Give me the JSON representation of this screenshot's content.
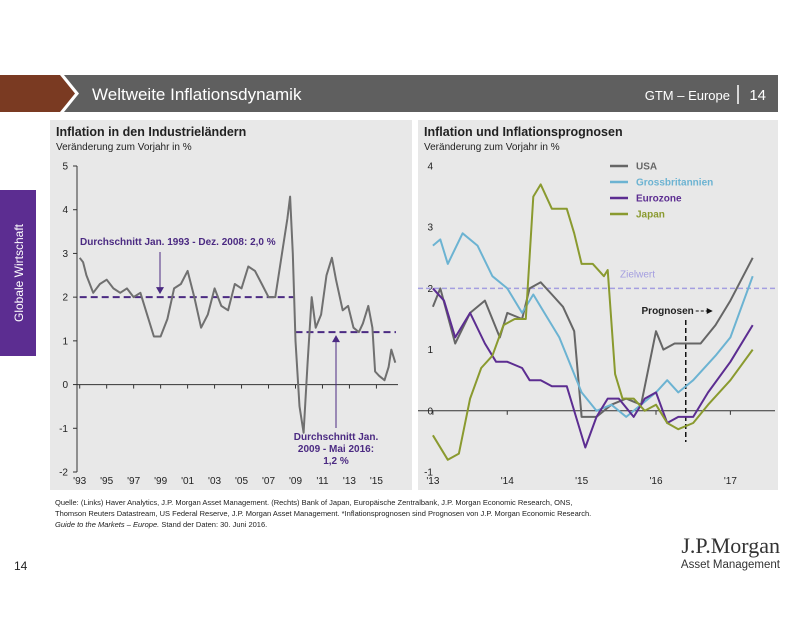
{
  "header": {
    "title": "Weltweite Inflationsdynamik",
    "section": "GTM – Europe",
    "page": "14"
  },
  "side_label": "Globale Wirtschaft",
  "chart_data": [
    {
      "type": "line",
      "title": "Inflation in den Industrieländern",
      "subtitle": "Veränderung zum Vorjahr in %",
      "xlim": [
        1992.8,
        2016.6
      ],
      "ylim": [
        -2,
        5
      ],
      "yticks": [
        -2,
        -1,
        0,
        1,
        2,
        3,
        4,
        5
      ],
      "xticks": [
        {
          "value": 1993,
          "label": "'93"
        },
        {
          "value": 1995,
          "label": "'95"
        },
        {
          "value": 1997,
          "label": "'97"
        },
        {
          "value": 1999,
          "label": "'99"
        },
        {
          "value": 2001,
          "label": "'01"
        },
        {
          "value": 2003,
          "label": "'03"
        },
        {
          "value": 2005,
          "label": "'05"
        },
        {
          "value": 2007,
          "label": "'07"
        },
        {
          "value": 2009,
          "label": "'09"
        },
        {
          "value": 2011,
          "label": "'11"
        },
        {
          "value": 2013,
          "label": "'13"
        },
        {
          "value": 2015,
          "label": "'15"
        }
      ],
      "series": [
        {
          "color": "#707070",
          "x": [
            1993,
            1993.25,
            1993.5,
            1993.75,
            1994,
            1994.5,
            1995,
            1995.5,
            1996,
            1996.5,
            1997,
            1997.5,
            1998,
            1998.5,
            1999,
            1999.5,
            2000,
            2000.5,
            2001,
            2001.5,
            2002,
            2002.5,
            2003,
            2003.5,
            2004,
            2004.5,
            2005,
            2005.5,
            2006,
            2006.5,
            2007,
            2007.5,
            2008,
            2008.4,
            2008.6,
            2008.8,
            2009,
            2009.3,
            2009.6,
            2009.9,
            2010.2,
            2010.5,
            2010.9,
            2011.3,
            2011.7,
            2012,
            2012.5,
            2012.9,
            2013.3,
            2013.7,
            2014,
            2014.4,
            2014.7,
            2014.9,
            2015.2,
            2015.6,
            2015.9,
            2016.1,
            2016.4
          ],
          "values": [
            2.9,
            2.8,
            2.5,
            2.3,
            2.1,
            2.3,
            2.4,
            2.2,
            2.1,
            2.2,
            2.0,
            2.1,
            1.6,
            1.1,
            1.1,
            1.5,
            2.2,
            2.3,
            2.6,
            2.0,
            1.3,
            1.6,
            2.2,
            1.8,
            1.7,
            2.3,
            2.2,
            2.7,
            2.6,
            2.3,
            2.0,
            2.0,
            3.0,
            3.8,
            4.3,
            3.0,
            1.0,
            -0.5,
            -1.1,
            0.5,
            2.0,
            1.3,
            1.6,
            2.5,
            2.9,
            2.4,
            1.7,
            1.8,
            1.3,
            1.2,
            1.4,
            1.8,
            1.3,
            0.3,
            0.2,
            0.1,
            0.4,
            0.8,
            0.5
          ]
        }
      ],
      "reference_lines": [
        {
          "value": 2.0,
          "x": [
            1993,
            2008.95
          ],
          "color": "#4b2a82",
          "label": "Durchschnitt Jan. 1993 - Dez. 2008: 2,0 %"
        },
        {
          "value": 1.2,
          "x": [
            2009,
            2016.45
          ],
          "color": "#4b2a82",
          "label_lines": [
            "Durchschnitt Jan.",
            "2009 - Mai 2016:",
            "1,2 %"
          ]
        }
      ]
    },
    {
      "type": "line",
      "title": "Inflation und Inflationsprognosen",
      "subtitle": "Veränderung zum Vorjahr in %",
      "xlim": [
        2012.8,
        2017.6
      ],
      "ylim": [
        -1,
        4
      ],
      "yticks": [
        -1,
        0,
        1,
        2,
        3,
        4
      ],
      "xticks": [
        {
          "value": 2013,
          "label": "'13"
        },
        {
          "value": 2014,
          "label": "'14"
        },
        {
          "value": 2015,
          "label": "'15"
        },
        {
          "value": 2016,
          "label": "'16"
        },
        {
          "value": 2017,
          "label": "'17"
        }
      ],
      "series": [
        {
          "name": "USA",
          "color": "#666666",
          "x": [
            2013.0,
            2013.1,
            2013.3,
            2013.5,
            2013.7,
            2013.9,
            2014.0,
            2014.2,
            2014.3,
            2014.45,
            2014.6,
            2014.75,
            2014.9,
            2015.0,
            2015.2,
            2015.4,
            2015.6,
            2015.8,
            2016.0,
            2016.1,
            2016.25,
            2016.4,
            2016.6,
            2016.8,
            2017.0,
            2017.3
          ],
          "values": [
            1.7,
            2.0,
            1.1,
            1.6,
            1.8,
            1.2,
            1.6,
            1.5,
            2.0,
            2.1,
            1.9,
            1.7,
            1.3,
            -0.1,
            -0.1,
            0.1,
            0.2,
            0.1,
            1.3,
            1.0,
            1.1,
            1.1,
            1.1,
            1.4,
            1.8,
            2.5
          ]
        },
        {
          "name": "Grossbritannien",
          "color": "#6cb3d2",
          "x": [
            2013.0,
            2013.1,
            2013.2,
            2013.4,
            2013.6,
            2013.8,
            2014.0,
            2014.2,
            2014.35,
            2014.5,
            2014.7,
            2014.9,
            2015.0,
            2015.2,
            2015.4,
            2015.6,
            2015.8,
            2016.0,
            2016.15,
            2016.3,
            2016.5,
            2016.8,
            2017.0,
            2017.3
          ],
          "values": [
            2.7,
            2.8,
            2.4,
            2.9,
            2.7,
            2.2,
            2.0,
            1.6,
            1.9,
            1.6,
            1.2,
            0.6,
            0.3,
            0.0,
            0.1,
            -0.1,
            0.1,
            0.3,
            0.5,
            0.3,
            0.5,
            0.9,
            1.2,
            2.2
          ]
        },
        {
          "name": "Eurozone",
          "color": "#5c2d91",
          "x": [
            2013.0,
            2013.15,
            2013.3,
            2013.5,
            2013.7,
            2013.85,
            2014.0,
            2014.2,
            2014.3,
            2014.45,
            2014.6,
            2014.8,
            2014.95,
            2015.05,
            2015.2,
            2015.35,
            2015.5,
            2015.7,
            2015.85,
            2016.0,
            2016.15,
            2016.3,
            2016.5,
            2016.7,
            2017.0,
            2017.3
          ],
          "values": [
            2.0,
            1.8,
            1.2,
            1.6,
            1.1,
            0.8,
            0.8,
            0.7,
            0.5,
            0.5,
            0.4,
            0.4,
            -0.2,
            -0.6,
            -0.1,
            0.2,
            0.2,
            -0.1,
            0.2,
            0.3,
            -0.2,
            -0.1,
            -0.1,
            0.3,
            0.8,
            1.4
          ]
        },
        {
          "name": "Japan",
          "color": "#8a9a2f",
          "x": [
            2013.0,
            2013.2,
            2013.35,
            2013.5,
            2013.65,
            2013.8,
            2013.95,
            2014.1,
            2014.25,
            2014.35,
            2014.45,
            2014.6,
            2014.8,
            2014.9,
            2015.0,
            2015.15,
            2015.3,
            2015.35,
            2015.45,
            2015.55,
            2015.7,
            2015.85,
            2016.0,
            2016.15,
            2016.3,
            2016.5,
            2016.7,
            2017.0,
            2017.3
          ],
          "values": [
            -0.4,
            -0.8,
            -0.7,
            0.2,
            0.7,
            0.9,
            1.4,
            1.5,
            1.5,
            3.5,
            3.7,
            3.3,
            3.3,
            2.9,
            2.4,
            2.4,
            2.2,
            2.3,
            0.6,
            0.2,
            0.2,
            0.0,
            0.1,
            -0.2,
            -0.3,
            -0.2,
            0.1,
            0.5,
            1.0
          ]
        }
      ],
      "reference_lines": [
        {
          "value": 2.0,
          "color": "#a49ee0",
          "label": "Zielwert"
        }
      ],
      "forecast": {
        "x": 2016.4,
        "label": "Prognosen"
      }
    }
  ],
  "footer": {
    "source": [
      "Quelle: (Links) Haver Analytics, J.P. Morgan Asset Management. (Rechts) Bank of Japan, Europäische Zentralbank, J.P. Morgan Economic Research, ONS,",
      "Thomson Reuters Datastream, US Federal Reserve, J.P. Morgan Asset Management. *Inflationsprognosen sind Prognosen von J.P. Morgan Economic Research."
    ],
    "guide": "Guide to the Markets – Europe.",
    "date": " Stand der Daten: 30. Juni 2016."
  },
  "page_number": "14",
  "logo": {
    "name": "J.P.Morgan",
    "sub": "Asset Management"
  }
}
